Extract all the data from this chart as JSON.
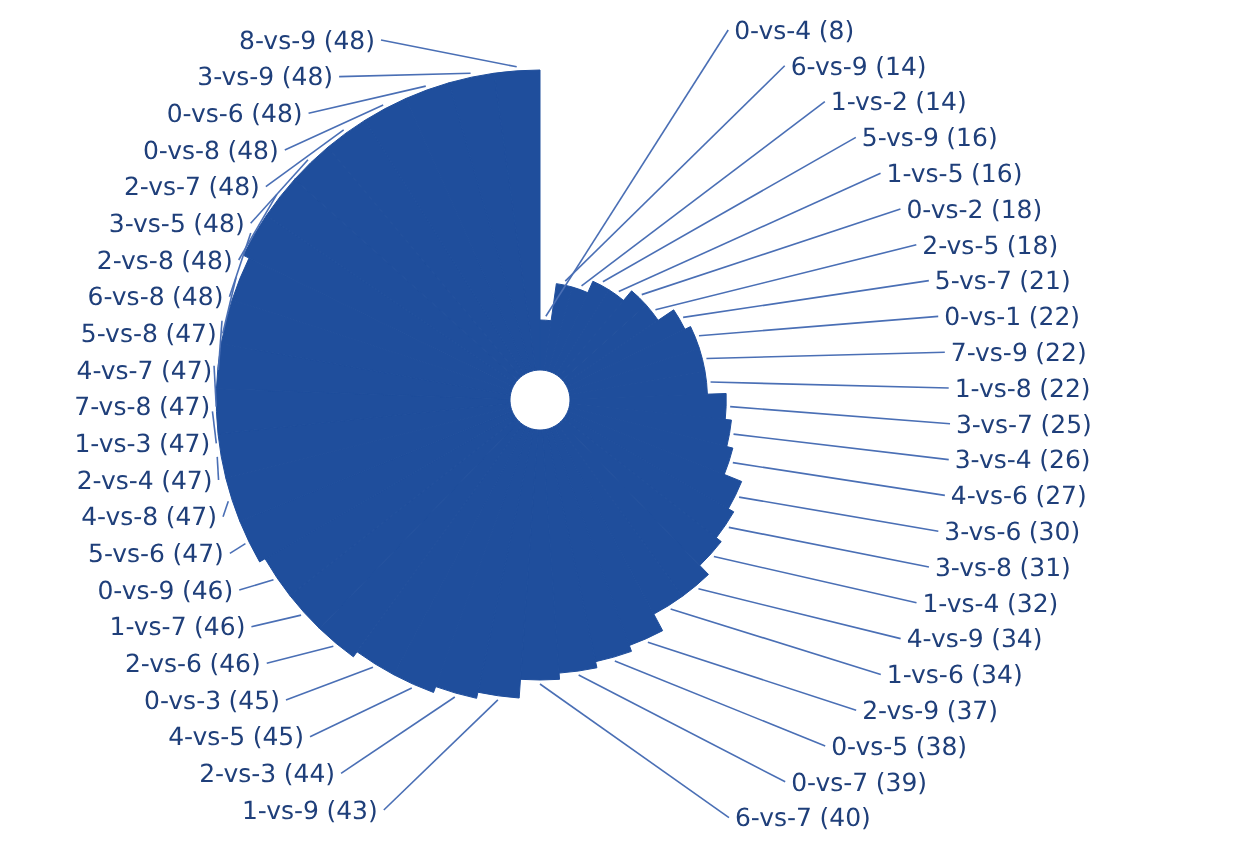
{
  "chart_data": {
    "type": "other",
    "color": "#1f4e9c",
    "value_labels": [
      "(8)",
      "(14)",
      "(14)",
      "(16)",
      "(16)",
      "(18)",
      "(18)",
      "(21)",
      "(22)",
      "(22)",
      "(22)",
      "(25)",
      "(26)",
      "(27)",
      "(30)",
      "(31)",
      "(32)",
      "(34)",
      "(34)",
      "(37)",
      "(38)",
      "(39)",
      "(40)",
      "(43)",
      "(44)",
      "(45)",
      "(45)",
      "(46)",
      "(46)",
      "(46)",
      "(47)",
      "(47)",
      "(47)",
      "(47)",
      "(47)",
      "(47)",
      "(47)",
      "(48)",
      "(48)",
      "(48)",
      "(48)",
      "(48)",
      "(48)",
      "(48)",
      "(48)"
    ],
    "categories": [
      "0-vs-4",
      "6-vs-9",
      "1-vs-2",
      "5-vs-9",
      "1-vs-5",
      "0-vs-2",
      "2-vs-5",
      "5-vs-7",
      "0-vs-1",
      "7-vs-9",
      "1-vs-8",
      "3-vs-7",
      "3-vs-4",
      "4-vs-6",
      "3-vs-6",
      "3-vs-8",
      "1-vs-4",
      "4-vs-9",
      "1-vs-6",
      "2-vs-9",
      "0-vs-5",
      "0-vs-7",
      "6-vs-7",
      "1-vs-9",
      "2-vs-3",
      "4-vs-5",
      "0-vs-3",
      "2-vs-6",
      "1-vs-7",
      "0-vs-9",
      "5-vs-6",
      "4-vs-8",
      "2-vs-4",
      "1-vs-3",
      "7-vs-8",
      "4-vs-7",
      "5-vs-8",
      "6-vs-8",
      "2-vs-8",
      "3-vs-5",
      "2-vs-7",
      "0-vs-8",
      "0-vs-6",
      "3-vs-9",
      "8-vs-9"
    ],
    "values": [
      8,
      14,
      14,
      16,
      16,
      18,
      18,
      21,
      22,
      22,
      22,
      25,
      26,
      27,
      30,
      31,
      32,
      34,
      34,
      37,
      38,
      39,
      40,
      43,
      44,
      45,
      45,
      46,
      46,
      46,
      47,
      47,
      47,
      47,
      47,
      47,
      47,
      48,
      48,
      48,
      48,
      48,
      48,
      48,
      48
    ]
  }
}
